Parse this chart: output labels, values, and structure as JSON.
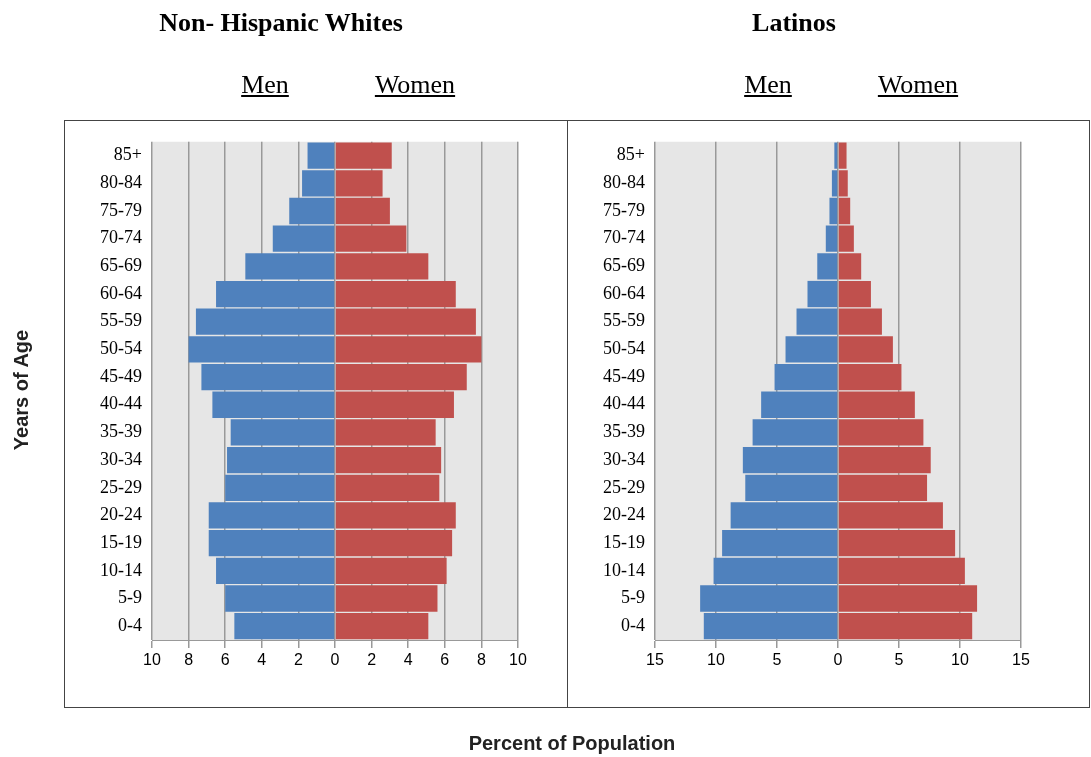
{
  "chart_data": [
    {
      "type": "bar",
      "orientation": "horizontal",
      "stacked": true,
      "title": "Non- Hispanic Whites",
      "ylabel": "Years of Age",
      "xlabel": "Percent of Population",
      "categories": [
        "85+",
        "80-84",
        "75-79",
        "70-74",
        "65-69",
        "60-64",
        "55-59",
        "50-54",
        "45-49",
        "40-44",
        "35-39",
        "30-34",
        "25-29",
        "20-24",
        "15-19",
        "10-14",
        "5-9",
        "0-4"
      ],
      "series": [
        {
          "name": "Men",
          "color": "#4f81bd",
          "values": [
            -1.5,
            -1.8,
            -2.5,
            -3.4,
            -4.9,
            -6.5,
            -7.6,
            -8.0,
            -7.3,
            -6.7,
            -5.7,
            -5.9,
            -6.0,
            -6.9,
            -6.9,
            -6.5,
            -6.0,
            -5.5
          ]
        },
        {
          "name": "Women",
          "color": "#c0504d",
          "values": [
            3.1,
            2.6,
            3.0,
            3.9,
            5.1,
            6.6,
            7.7,
            8.0,
            7.2,
            6.5,
            5.5,
            5.8,
            5.7,
            6.6,
            6.4,
            6.1,
            5.6,
            5.1
          ]
        }
      ],
      "xlim": [
        -10,
        10
      ],
      "xticks": [
        {
          "value": -10,
          "label": "10"
        },
        {
          "value": -8,
          "label": "8"
        },
        {
          "value": -6,
          "label": "6"
        },
        {
          "value": -4,
          "label": "4"
        },
        {
          "value": -2,
          "label": "2"
        },
        0,
        2,
        4,
        6,
        8,
        10
      ],
      "grid": "x"
    },
    {
      "type": "bar",
      "orientation": "horizontal",
      "stacked": true,
      "title": "Latinos",
      "categories": [
        "85+",
        "80-84",
        "75-79",
        "70-74",
        "65-69",
        "60-64",
        "55-59",
        "50-54",
        "45-49",
        "40-44",
        "35-39",
        "30-34",
        "25-29",
        "20-24",
        "15-19",
        "10-14",
        "5-9",
        "0-4"
      ],
      "series": [
        {
          "name": "Men",
          "color": "#4f81bd",
          "values": [
            -0.3,
            -0.5,
            -0.7,
            -1.0,
            -1.7,
            -2.5,
            -3.4,
            -4.3,
            -5.2,
            -6.3,
            -7.0,
            -7.8,
            -7.6,
            -8.8,
            -9.5,
            -10.2,
            -11.3,
            -11.0
          ]
        },
        {
          "name": "Women",
          "color": "#c0504d",
          "values": [
            0.7,
            0.8,
            1.0,
            1.3,
            1.9,
            2.7,
            3.6,
            4.5,
            5.2,
            6.3,
            7.0,
            7.6,
            7.3,
            8.6,
            9.6,
            10.4,
            11.4,
            11.0
          ]
        }
      ],
      "xlim": [
        -15,
        15
      ],
      "xticks": [
        {
          "value": -15,
          "label": "15"
        },
        {
          "value": -10,
          "label": "10"
        },
        {
          "value": -5,
          "label": "5"
        },
        0,
        5,
        10,
        15
      ],
      "grid": "x"
    }
  ]
}
